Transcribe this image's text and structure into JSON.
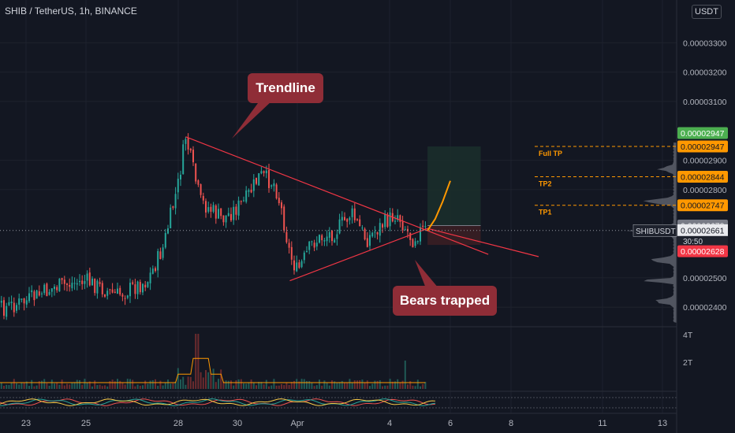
{
  "header": {
    "title": "SHIB / TetherUS, 1h, BINANCE",
    "currency": "USDT"
  },
  "annotations": {
    "trendline": "Trendline",
    "bears_trapped": "Bears trapped",
    "full_tp": "Full TP",
    "tp2": "TP2",
    "tp1": "TP1"
  },
  "price_tags": {
    "target_green": "0.00002947",
    "full_tp": "0.00002947",
    "tp2": "0.00002844",
    "tp1": "0.00002747",
    "entry_gray": "0.00002678",
    "symbol": "SHIBUSDT",
    "last_price": "0.00002661",
    "countdown": "30:50",
    "stop_loss": "0.00002628"
  },
  "volume_axis": [
    "4T",
    "2T"
  ],
  "colors": {
    "up": "#26a69a",
    "down": "#ef5350",
    "trendline": "#f23645",
    "target_zone": "#1b2d2b",
    "stop_zone": "#3a1e24",
    "tp_label": "#ff9800",
    "callout_bg": "#8f2d37",
    "grid": "#1e222d",
    "price_tag_green": "#4caf50",
    "price_tag_red": "#f23645",
    "price_tag_gray": "#787b86"
  },
  "chart_data": {
    "type": "candlestick",
    "symbol": "SHIBUSDT",
    "interval": "1h",
    "exchange": "BINANCE",
    "x_tick_labels": [
      "23",
      "25",
      "28",
      "30",
      "Apr",
      "4",
      "6",
      "8",
      "11",
      "13"
    ],
    "y_tick_labels": [
      "0.00003300",
      "0.00003200",
      "0.00003100",
      "0.00002900",
      "0.00002800",
      "0.00002500",
      "0.00002400"
    ],
    "y_ticks": [
      3.3e-05,
      3.2e-05,
      3.1e-05,
      2.9e-05,
      2.8e-05,
      2.5e-05,
      2.4e-05
    ],
    "ylim": [
      2.347e-05,
      3.365e-05
    ],
    "price_path": [
      {
        "x": "21 Mar 00:00",
        "y": 2.38e-05
      },
      {
        "x": "22 Mar 00:00",
        "y": 2.39e-05
      },
      {
        "x": "23 Mar 00:00",
        "y": 2.42e-05
      },
      {
        "x": "24 Mar 00:00",
        "y": 2.47e-05
      },
      {
        "x": "25 Mar 00:00",
        "y": 2.49e-05
      },
      {
        "x": "26 Mar 00:00",
        "y": 2.44e-05
      },
      {
        "x": "27 Mar 00:00",
        "y": 2.49e-05
      },
      {
        "x": "27 Mar 12:00",
        "y": 2.6e-05
      },
      {
        "x": "28 Mar 00:00",
        "y": 2.82e-05
      },
      {
        "x": "28 Mar 06:00",
        "y": 2.98e-05
      },
      {
        "x": "28 Mar 18:00",
        "y": 2.76e-05
      },
      {
        "x": "29 Mar 12:00",
        "y": 2.7e-05
      },
      {
        "x": "30 Mar 06:00",
        "y": 2.76e-05
      },
      {
        "x": "30 Mar 18:00",
        "y": 2.85e-05
      },
      {
        "x": "31 Mar 06:00",
        "y": 2.82e-05
      },
      {
        "x": "31 Mar 12:00",
        "y": 2.72e-05
      },
      {
        "x": "31 Mar 18:00",
        "y": 2.58e-05
      },
      {
        "x": "1 Apr 00:00",
        "y": 2.52e-05
      },
      {
        "x": "1 Apr 12:00",
        "y": 2.62e-05
      },
      {
        "x": "2 Apr 06:00",
        "y": 2.66e-05
      },
      {
        "x": "2 Apr 18:00",
        "y": 2.72e-05
      },
      {
        "x": "3 Apr 06:00",
        "y": 2.63e-05
      },
      {
        "x": "3 Apr 18:00",
        "y": 2.68e-05
      },
      {
        "x": "4 Apr 06:00",
        "y": 2.72e-05
      },
      {
        "x": "4 Apr 18:00",
        "y": 2.63e-05
      },
      {
        "x": "5 Apr 00:00",
        "y": 2.66e-05
      },
      {
        "x": "5 Apr 06:00",
        "y": 2.661e-05
      }
    ],
    "projection": [
      {
        "x": "5 Apr 06:00",
        "y": 2.661e-05
      },
      {
        "x": "5 Apr 12:00",
        "y": 2.7e-05
      },
      {
        "x": "5 Apr 18:00",
        "y": 2.76e-05
      },
      {
        "x": "6 Apr 00:00",
        "y": 2.83e-05
      }
    ],
    "trendlines": [
      {
        "name": "upper",
        "from": {
          "x": "28 Mar 06:00",
          "y": 2.98e-05
        },
        "to": {
          "x": "7 Apr 06:00",
          "y": 2.58e-05
        }
      },
      {
        "name": "lower",
        "from": {
          "x": "31 Mar 18:00",
          "y": 2.49e-05
        },
        "to": {
          "x": "5 Apr 06:00",
          "y": 2.668e-05
        }
      }
    ],
    "levels": {
      "full_tp": 2.947e-05,
      "tp2": 2.844e-05,
      "tp1": 2.747e-05,
      "entry": 2.678e-05,
      "last": 2.661e-05,
      "stop": 2.628e-05
    },
    "position_box": {
      "x_start": "5 Apr 06:00",
      "x_end": "7 Apr 00:00",
      "target": 2.947e-05,
      "entry": 2.678e-05,
      "stop": 2.628e-05
    },
    "volume_ticks": [
      "4T",
      "2T"
    ],
    "grid": true
  }
}
